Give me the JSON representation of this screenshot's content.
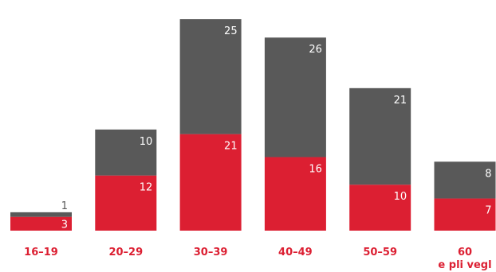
{
  "colors": {
    "bottom_series": "#dc1f32",
    "top_series": "#595959",
    "category_label": "#dc1f32",
    "label_on_red": "#ffffff",
    "label_on_gray": "#ffffff",
    "label_above": "#595959"
  },
  "chart_data": {
    "type": "bar",
    "stacked": true,
    "categories": [
      "16–19",
      "20–29",
      "30–39",
      "40–49",
      "50–59",
      "60\ne pli vegl"
    ],
    "series": [
      {
        "values": [
          3,
          12,
          21,
          16,
          10,
          7
        ]
      },
      {
        "values": [
          1,
          10,
          25,
          26,
          21,
          8
        ]
      }
    ],
    "ylim": [
      0,
      46
    ],
    "grid": false,
    "legend": "none"
  }
}
